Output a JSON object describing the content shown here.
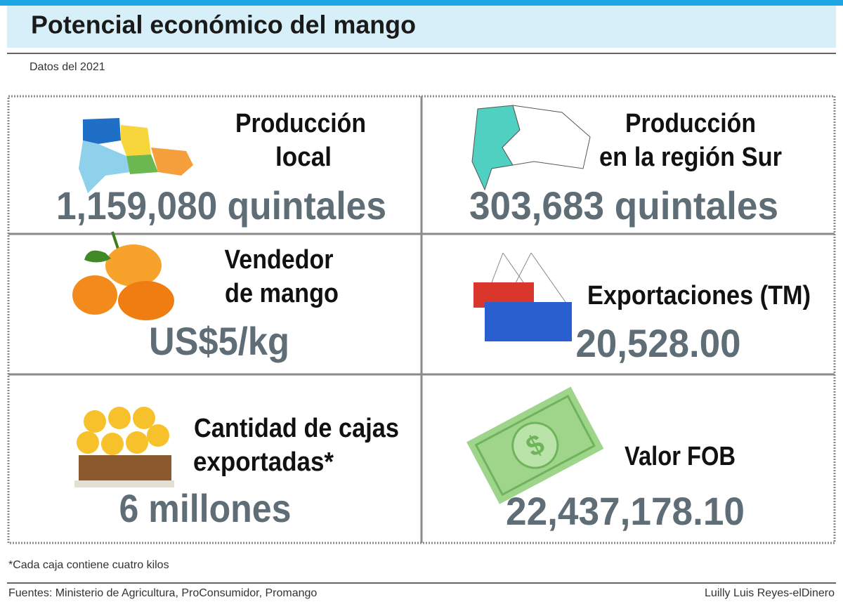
{
  "header": {
    "title": "Potencial económico del mango",
    "subtitle": "Datos del 2021"
  },
  "cards": [
    {
      "label": [
        "Producción",
        "local"
      ],
      "value": "1,159,080 quintales"
    },
    {
      "label": [
        "Producción",
        "en la región Sur"
      ],
      "value": "303,683 quintales"
    },
    {
      "label": [
        "Vendedor",
        "de mango"
      ],
      "value": "US$5/kg"
    },
    {
      "label": [
        "Exportaciones (TM)"
      ],
      "value": "20,528.00"
    },
    {
      "label": [
        "Cantidad de cajas",
        "exportadas*"
      ],
      "value": "6 millones"
    },
    {
      "label": [
        "Valor FOB"
      ],
      "value": "22,437,178.10"
    }
  ],
  "footer": {
    "note": "*Cada caja contiene cuatro kilos",
    "sources": "Fuentes: Ministerio de Agricultura, ProConsumidor, Promango",
    "credit": "Luilly Luis Reyes-elDinero"
  }
}
